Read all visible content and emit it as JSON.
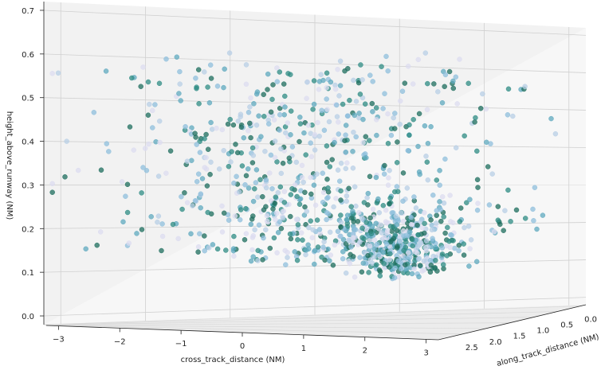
{
  "chart_data": {
    "type": "scatter",
    "projection": "3d",
    "title": "",
    "xlabel": "cross_track_distance (NM)",
    "ylabel": "along_track_distance (NM)",
    "zlabel": "height_above_runway (NM)",
    "xlim": [
      -3.2,
      3.2
    ],
    "ylim": [
      -0.1,
      3.0
    ],
    "zlim": [
      -0.02,
      0.72
    ],
    "x_ticks": [
      "−3",
      "−2",
      "−1",
      "0",
      "1",
      "2",
      "3"
    ],
    "y_ticks": [
      "0.0",
      "0.5",
      "1.0",
      "1.5",
      "2.0",
      "2.5"
    ],
    "z_ticks": [
      "0.0",
      "0.1",
      "0.2",
      "0.3",
      "0.4",
      "0.5",
      "0.6",
      "0.7"
    ],
    "grid": true,
    "legend": "none",
    "point_colors": [
      "#dcdcf0",
      "#b8cfe6",
      "#8fbfdc",
      "#5fa9bf",
      "#2f8c84",
      "#1e6e5e"
    ],
    "point_count_estimate": 1200
  }
}
